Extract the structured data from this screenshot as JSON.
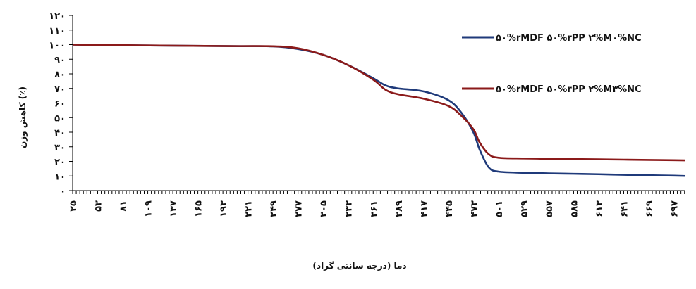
{
  "chart_data": {
    "type": "line",
    "title": "",
    "xlabel": "دما (درجه سانتی گراد)",
    "ylabel": "کاهش وزن (٪)",
    "ylim": [
      0,
      120
    ],
    "xlim": [
      25,
      710
    ],
    "grid": false,
    "legend_position": "top-right",
    "y_ticks": [
      0,
      10,
      20,
      30,
      40,
      50,
      60,
      70,
      80,
      90,
      100,
      110,
      120
    ],
    "y_tick_labels": [
      "۰",
      "۱۰",
      "۲۰",
      "۳۰",
      "۴۰",
      "۵۰",
      "۶۰",
      "۷۰",
      "۸۰",
      "۹۰",
      "۱۰۰",
      "۱۱۰",
      "۱۲۰"
    ],
    "x_ticks": [
      25,
      53,
      81,
      109,
      137,
      165,
      193,
      221,
      249,
      277,
      305,
      333,
      361,
      389,
      417,
      445,
      473,
      501,
      529,
      557,
      585,
      613,
      641,
      669,
      697
    ],
    "x_tick_labels": [
      "۲۵",
      "۵۳",
      "۸۱",
      "۱۰۹",
      "۱۳۷",
      "۱۶۵",
      "۱۹۳",
      "۲۲۱",
      "۲۴۹",
      "۲۷۷",
      "۳۰۵",
      "۳۳۳",
      "۳۶۱",
      "۳۸۹",
      "۴۱۷",
      "۴۴۵",
      "۴۷۳",
      "۵۰۱",
      "۵۲۹",
      "۵۵۷",
      "۵۸۵",
      "۶۱۳",
      "۶۴۱",
      "۶۶۹",
      "۶۹۷"
    ],
    "series": [
      {
        "name": "۵۰%rMDF ۵۰%rPP ۲%M۰%NC",
        "color": "#1f3a7a",
        "points": [
          [
            25,
            100
          ],
          [
            100,
            99.5
          ],
          [
            200,
            99
          ],
          [
            249,
            98.8
          ],
          [
            277,
            97
          ],
          [
            305,
            93
          ],
          [
            333,
            86
          ],
          [
            361,
            77
          ],
          [
            375,
            72
          ],
          [
            389,
            70
          ],
          [
            417,
            68
          ],
          [
            445,
            62
          ],
          [
            460,
            53
          ],
          [
            473,
            40
          ],
          [
            480,
            28
          ],
          [
            490,
            16
          ],
          [
            501,
            13
          ],
          [
            529,
            12.2
          ],
          [
            557,
            11.8
          ],
          [
            585,
            11.5
          ],
          [
            613,
            11.2
          ],
          [
            641,
            10.8
          ],
          [
            669,
            10.5
          ],
          [
            697,
            10.2
          ],
          [
            710,
            10
          ]
        ]
      },
      {
        "name": "۵۰%rMDF ۵۰%rPP ۲%M۳%NC",
        "color": "#8b1a1a",
        "points": [
          [
            25,
            100
          ],
          [
            100,
            99.5
          ],
          [
            200,
            99
          ],
          [
            249,
            98.9
          ],
          [
            277,
            97.5
          ],
          [
            305,
            93
          ],
          [
            333,
            86
          ],
          [
            361,
            76
          ],
          [
            375,
            69
          ],
          [
            389,
            66
          ],
          [
            417,
            63
          ],
          [
            445,
            58
          ],
          [
            460,
            51
          ],
          [
            473,
            42
          ],
          [
            480,
            33
          ],
          [
            490,
            25
          ],
          [
            501,
            22.5
          ],
          [
            529,
            22
          ],
          [
            557,
            21.8
          ],
          [
            585,
            21.6
          ],
          [
            613,
            21.4
          ],
          [
            641,
            21.2
          ],
          [
            669,
            21
          ],
          [
            697,
            20.8
          ],
          [
            710,
            20.7
          ]
        ]
      }
    ]
  }
}
